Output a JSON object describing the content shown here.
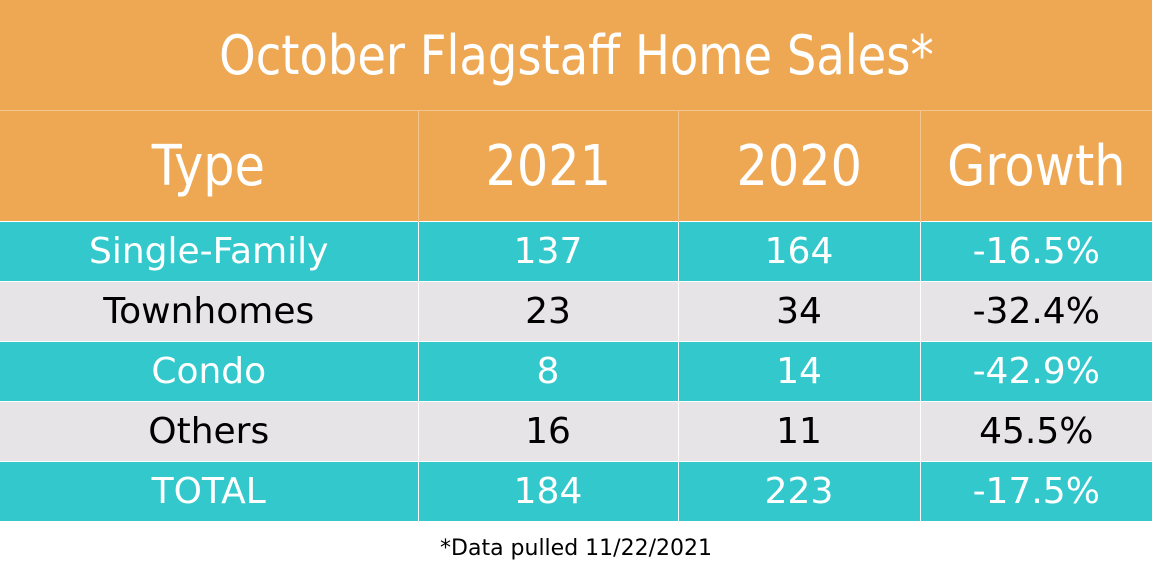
{
  "title": "October Flagstaff Home Sales*",
  "colors": {
    "header_bg": "#eea853",
    "teal_row": "#33c9cc",
    "gray_row": "#e6e4e6",
    "header_text": "#ffffff"
  },
  "chart_data": {
    "type": "table",
    "title": "October Flagstaff Home Sales*",
    "columns": [
      "Type",
      "2021",
      "2020",
      "Growth"
    ],
    "rows": [
      {
        "type": "Single-Family",
        "y2021": "137",
        "y2020": "164",
        "growth": "-16.5%"
      },
      {
        "type": "Townhomes",
        "y2021": "23",
        "y2020": "34",
        "growth": "-32.4%"
      },
      {
        "type": "Condo",
        "y2021": "8",
        "y2020": "14",
        "growth": "-42.9%"
      },
      {
        "type": "Others",
        "y2021": "16",
        "y2020": "11",
        "growth": "45.5%"
      },
      {
        "type": "TOTAL",
        "y2021": "184",
        "y2020": "223",
        "growth": "-17.5%"
      }
    ]
  },
  "footnote": "*Data pulled 11/22/2021"
}
